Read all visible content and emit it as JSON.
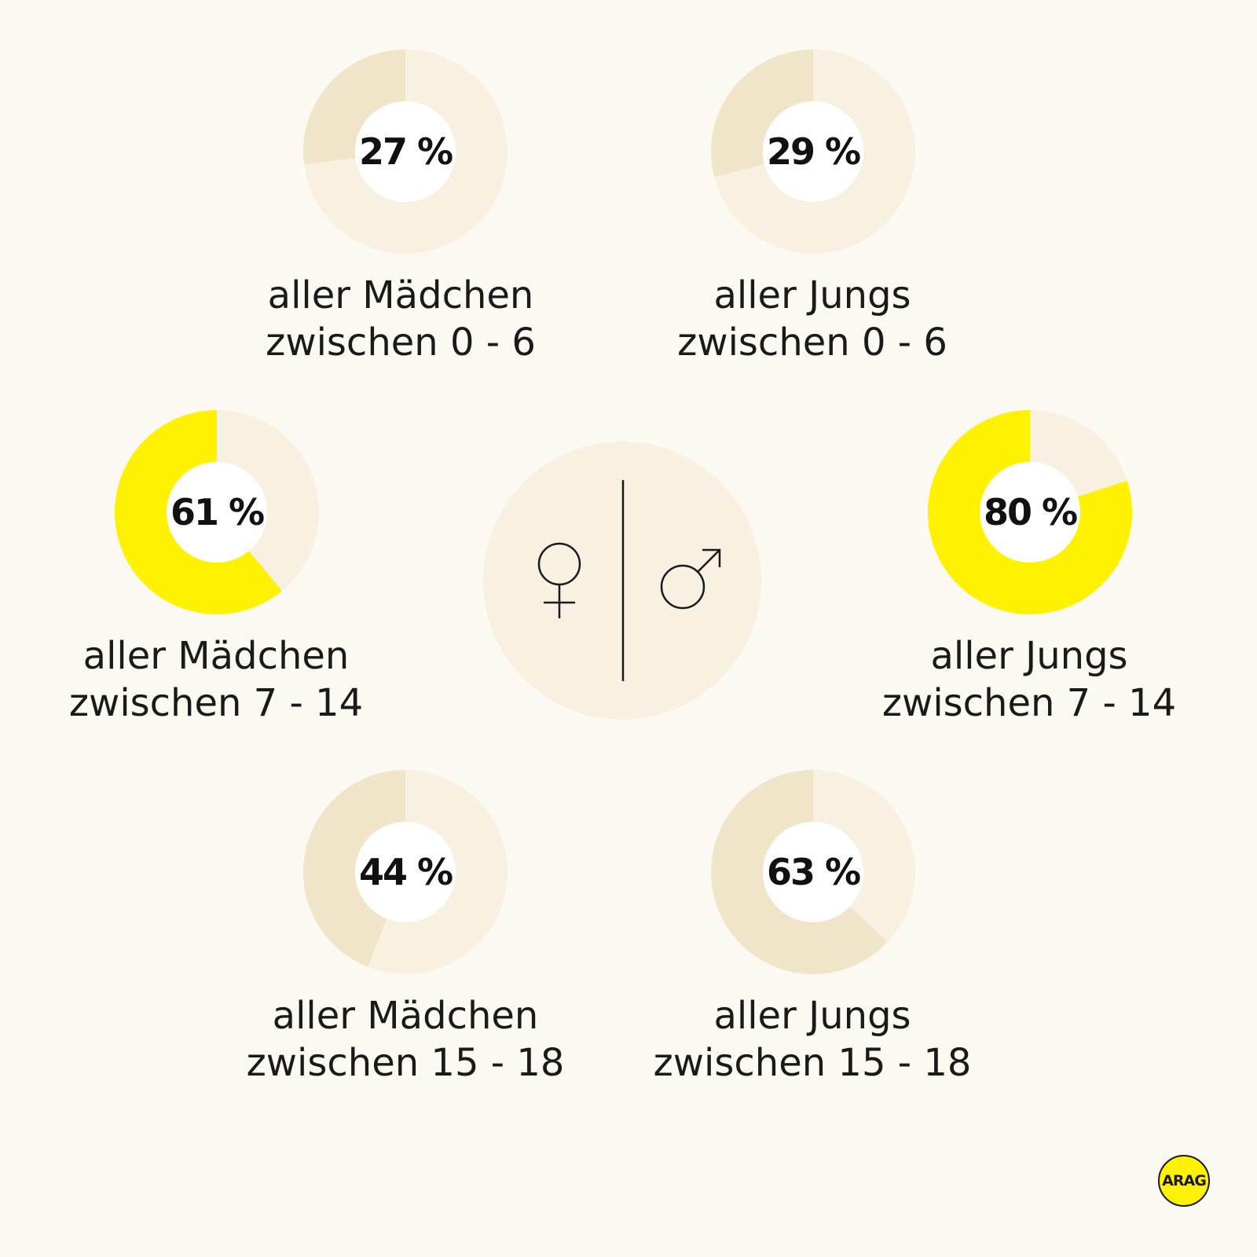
{
  "chart_data": {
    "type": "pie",
    "title": "",
    "items": [
      {
        "value": 27,
        "label": "27 %",
        "line1": "aller Mädchen",
        "line2": "zwischen 0 - 6"
      },
      {
        "value": 29,
        "label": "29 %",
        "line1": "aller Jungs",
        "line2": "zwischen 0 - 6"
      },
      {
        "value": 61,
        "label": "61 %",
        "line1": "aller Mädchen",
        "line2": "zwischen 7 - 14"
      },
      {
        "value": 80,
        "label": "80 %",
        "line1": "aller Jungs",
        "line2": "zwischen 7 - 14"
      },
      {
        "value": 44,
        "label": "44 %",
        "line1": "aller Mädchen",
        "line2": "zwischen 15 - 18"
      },
      {
        "value": 63,
        "label": "63 %",
        "line1": "aller Jungs",
        "line2": "zwischen 15 - 18"
      }
    ],
    "highlighted": [
      2,
      3
    ]
  },
  "colors": {
    "background": "#fcf9f3",
    "track": "#f8f0e0",
    "segment": "#f1e5c9",
    "highlight": "#fff200",
    "center_circle": "#f8f0e0",
    "text": "#111111"
  },
  "center": {
    "female_symbol": "female-icon",
    "male_symbol": "male-icon"
  },
  "logo": {
    "text": "ARAG"
  }
}
